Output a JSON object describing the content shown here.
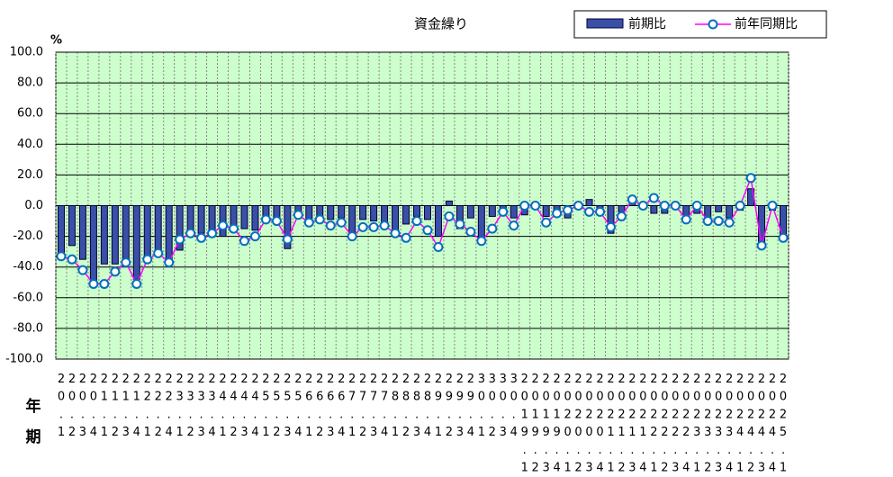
{
  "chart_data": {
    "type": "bar-line",
    "title": "資金繰り",
    "y_unit": "%",
    "x_axis_labels": [
      "年",
      "期"
    ],
    "categories": [
      "20.1",
      "20.2",
      "20.3",
      "20.4",
      "21.1",
      "21.2",
      "21.3",
      "21.4",
      "22.1",
      "22.2",
      "22.4",
      "23.1",
      "23.2",
      "23.3",
      "23.4",
      "24.1",
      "24.2",
      "24.3",
      "24.4",
      "25.1",
      "25.2",
      "25.3",
      "25.4",
      "26.1",
      "26.2",
      "26.3",
      "26.4",
      "27.1",
      "27.2",
      "27.3",
      "27.4",
      "28.1",
      "28.2",
      "28.3",
      "28.4",
      "29.1",
      "29.2",
      "29.3",
      "29.4",
      "30.1",
      "30.2",
      "30.3",
      "30.4",
      "2019.1",
      "2019.2",
      "2019.3",
      "2019.4",
      "2020.1",
      "2020.2",
      "2020.3",
      "2020.4",
      "2021.1",
      "2021.2",
      "2021.3",
      "2021.4",
      "2022.1",
      "2022.2",
      "2022.3",
      "2022.4",
      "2023.1",
      "2023.2",
      "2023.3",
      "2023.4",
      "2024.1",
      "2024.2",
      "2024.3",
      "2024.4",
      "2025.1"
    ],
    "series": [
      {
        "name": "前期比",
        "kind": "bar",
        "color": "#3a4fa8",
        "values": [
          -32,
          -26,
          -35,
          -49,
          -38,
          -38,
          -38,
          -48,
          -33,
          -30,
          -35,
          -29,
          -18,
          -18,
          -17,
          -20,
          -15,
          -15,
          -16,
          -8,
          -8,
          -28,
          -5,
          -9,
          -7,
          -9,
          -8,
          -20,
          -9,
          -10,
          -12,
          -17,
          -12,
          -7,
          -9,
          -20,
          3,
          -15,
          -8,
          -22,
          -7,
          -5,
          -8,
          -6,
          0,
          -7,
          -4,
          -8,
          -2,
          4,
          -5,
          -18,
          -4,
          4,
          -2,
          -5,
          -5,
          -2,
          -8,
          -5,
          -8,
          -4,
          -8,
          -3,
          11,
          -25,
          -3,
          -20
        ]
      },
      {
        "name": "前年同期比",
        "kind": "line",
        "color": "#ff00ff",
        "marker_color": "#0070c0",
        "values": [
          -33,
          -35,
          -42,
          -51,
          -51,
          -43,
          -37,
          -51,
          -35,
          -31,
          -37,
          -22,
          -18,
          -21,
          -18,
          -13,
          -15,
          -23,
          -20,
          -9,
          -10,
          -22,
          -6,
          -11,
          -9,
          -13,
          -11,
          -20,
          -14,
          -14,
          -13,
          -18,
          -21,
          -10,
          -16,
          -27,
          -7,
          -12,
          -17,
          -23,
          -15,
          -4,
          -13,
          0,
          0,
          -11,
          -5,
          -3,
          0,
          -4,
          -4,
          -14,
          -7,
          4,
          0,
          5,
          0,
          0,
          -9,
          0,
          -10,
          -10,
          -11,
          0,
          18,
          -26,
          0,
          -21
        ]
      }
    ],
    "ylim": [
      -100,
      100
    ],
    "yticks": [
      {
        "value": -100,
        "label": "-100.0"
      },
      {
        "value": -80,
        "label": "-80.0"
      },
      {
        "value": -60,
        "label": "-60.0"
      },
      {
        "value": -40,
        "label": "-40.0"
      },
      {
        "value": -20,
        "label": "-20.0"
      },
      {
        "value": 0,
        "label": "0.0"
      },
      {
        "value": 20,
        "label": "20.0"
      },
      {
        "value": 40,
        "label": "40.0"
      },
      {
        "value": 60,
        "label": "60.0"
      },
      {
        "value": 80,
        "label": "80.0"
      },
      {
        "value": 100,
        "label": "100.0"
      }
    ],
    "grid": true,
    "plot_background": "#ccffcc"
  }
}
